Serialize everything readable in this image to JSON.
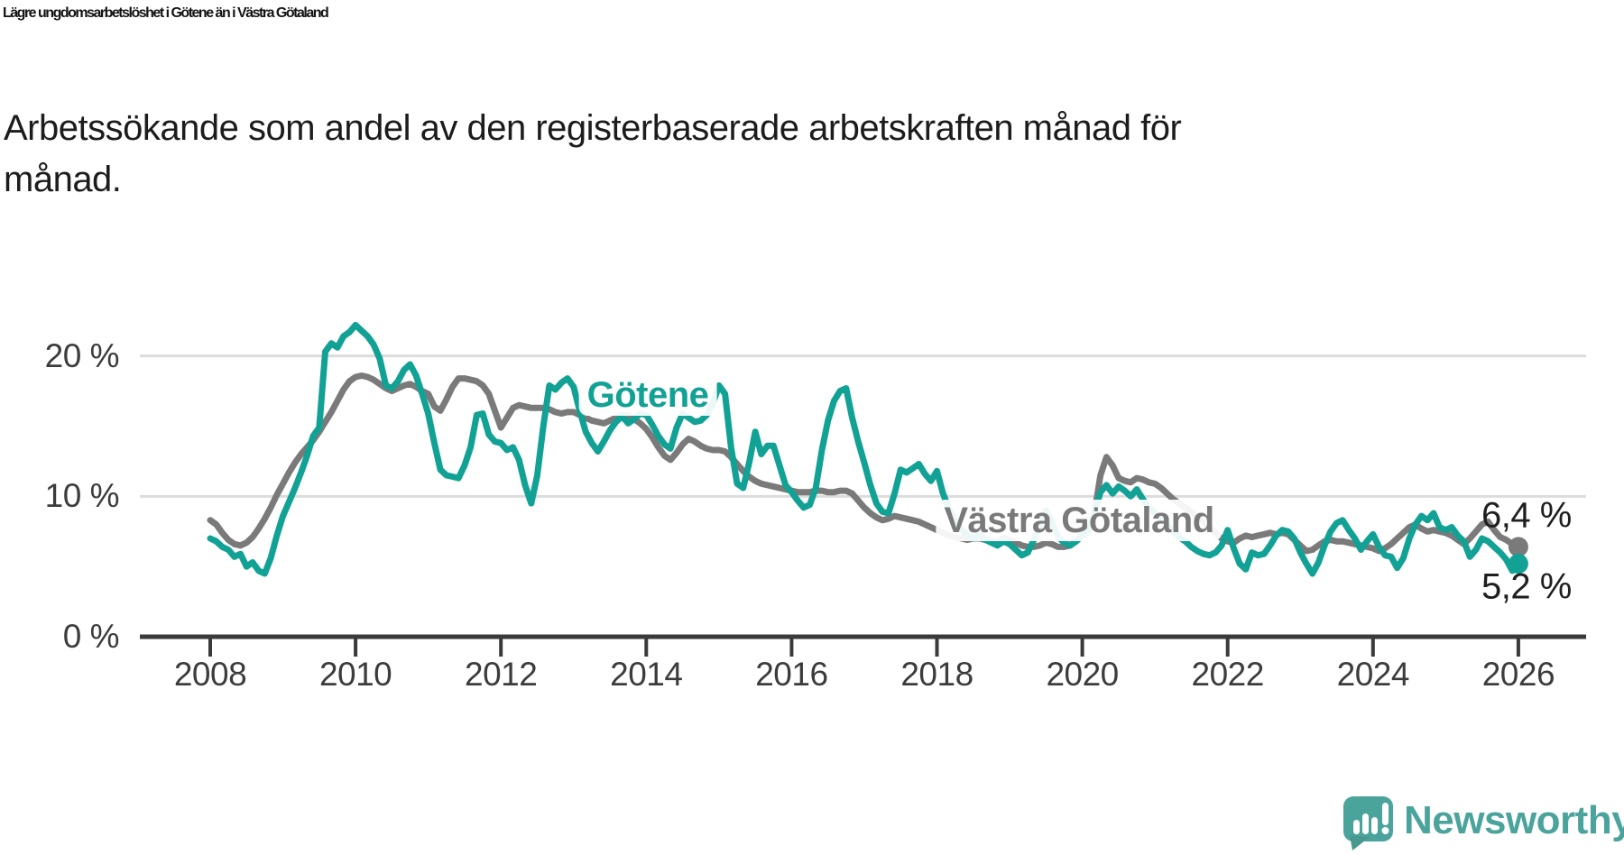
{
  "chart_data": {
    "type": "line",
    "title": "Lägre ungdomsarbetslöshet i Götene än i Västra Götaland",
    "subtitle": "Arbetssökande som andel av den registerbaserade arbetskraften månad för månad.",
    "subtitle_lines": [
      "Arbetssökande som andel av den registerbaserade arbetskraften månad för",
      "månad."
    ],
    "x_axis": {
      "ticks": [
        2008,
        2010,
        2012,
        2014,
        2016,
        2018,
        2020,
        2022,
        2024,
        2026
      ],
      "range": [
        2007.6,
        2026.9
      ]
    },
    "y_axis": {
      "ticks": [
        {
          "value": 0,
          "label": "0 %"
        },
        {
          "value": 10,
          "label": "10 %"
        },
        {
          "value": 20,
          "label": "20 %"
        }
      ],
      "range": [
        0,
        23
      ],
      "unit": "%",
      "grid": true
    },
    "legend_position": "inline-labels-on-lines",
    "frequency": "monthly",
    "series": [
      {
        "name": "Götene",
        "color": "#12A195",
        "start_year": 2008,
        "end_value_label": "5,2 %",
        "values": [
          7.0,
          6.8,
          6.4,
          6.2,
          5.7,
          5.9,
          5.0,
          5.3,
          4.7,
          4.5,
          5.6,
          7.2,
          8.6,
          9.6,
          10.6,
          11.7,
          12.9,
          14.3,
          14.9,
          20.3,
          20.9,
          20.6,
          21.4,
          21.7,
          22.2,
          21.8,
          21.4,
          20.8,
          19.8,
          17.9,
          17.7,
          18.2,
          19.0,
          19.4,
          18.6,
          17.3,
          15.9,
          13.8,
          11.9,
          11.5,
          11.4,
          11.3,
          12.2,
          13.5,
          15.8,
          15.9,
          14.4,
          13.9,
          13.8,
          13.3,
          13.5,
          12.6,
          10.8,
          9.5,
          11.5,
          15.0,
          17.9,
          17.6,
          18.1,
          18.4,
          17.8,
          16.1,
          14.6,
          13.8,
          13.2,
          13.9,
          14.7,
          15.3,
          15.7,
          15.2,
          15.5,
          15.9,
          15.8,
          15.1,
          14.3,
          13.7,
          13.4,
          14.9,
          15.9,
          15.6,
          15.3,
          15.4,
          15.8,
          16.6,
          17.9,
          17.3,
          13.5,
          10.9,
          10.6,
          12.4,
          14.6,
          13.0,
          13.6,
          13.6,
          12.2,
          10.8,
          10.3,
          9.7,
          9.2,
          9.4,
          10.6,
          13.3,
          15.4,
          16.8,
          17.5,
          17.7,
          15.6,
          13.9,
          12.4,
          10.8,
          9.5,
          8.9,
          8.8,
          10.2,
          11.9,
          11.7,
          12.0,
          12.3,
          11.6,
          11.1,
          11.8,
          10.2,
          9.1,
          8.3,
          7.7,
          7.2,
          7.0,
          7.3,
          6.9,
          6.7,
          6.5,
          6.8,
          6.6,
          6.2,
          5.8,
          6.0,
          6.9,
          7.9,
          9.0,
          8.2,
          7.1,
          6.7,
          6.5,
          6.8,
          7.2,
          7.5,
          8.8,
          10.3,
          10.8,
          10.2,
          10.7,
          10.4,
          10.0,
          10.5,
          9.8,
          9.2,
          8.8,
          8.4,
          7.9,
          7.5,
          7.1,
          6.8,
          6.4,
          6.1,
          5.9,
          5.8,
          6.0,
          6.5,
          7.6,
          6.3,
          5.2,
          4.8,
          6.0,
          5.8,
          5.9,
          6.5,
          7.2,
          7.6,
          7.5,
          7.0,
          6.0,
          5.2,
          4.5,
          5.3,
          6.5,
          7.5,
          8.1,
          8.3,
          7.6,
          7.0,
          6.2,
          6.8,
          7.3,
          6.4,
          5.8,
          5.7,
          4.9,
          5.6,
          7.0,
          8.0,
          8.6,
          8.3,
          8.8,
          7.8,
          7.6,
          7.8,
          7.2,
          6.8,
          5.7,
          6.2,
          7.0,
          6.8,
          6.4,
          6.0,
          5.5,
          4.7,
          5.2
        ]
      },
      {
        "name": "Västra Götaland",
        "color": "#7A7A7A",
        "start_year": 2008,
        "end_value_label": "6,4 %",
        "values": [
          8.3,
          8.0,
          7.4,
          6.9,
          6.6,
          6.5,
          6.7,
          7.1,
          7.7,
          8.4,
          9.2,
          10.1,
          10.9,
          11.7,
          12.4,
          13.0,
          13.5,
          14.0,
          14.6,
          15.3,
          16.0,
          16.8,
          17.6,
          18.2,
          18.5,
          18.6,
          18.5,
          18.3,
          18.0,
          17.7,
          17.5,
          17.7,
          17.9,
          18.0,
          17.8,
          17.5,
          17.3,
          16.4,
          16.1,
          16.9,
          17.8,
          18.4,
          18.4,
          18.3,
          18.2,
          17.9,
          17.3,
          16.1,
          14.9,
          15.6,
          16.3,
          16.5,
          16.4,
          16.3,
          16.3,
          16.3,
          16.2,
          16.0,
          15.9,
          16.0,
          16.0,
          15.8,
          15.6,
          15.4,
          15.3,
          15.2,
          15.4,
          15.6,
          15.8,
          15.8,
          15.5,
          15.2,
          14.8,
          14.2,
          13.5,
          12.9,
          12.6,
          13.1,
          13.7,
          14.1,
          13.9,
          13.6,
          13.4,
          13.3,
          13.3,
          13.2,
          12.8,
          12.3,
          11.8,
          11.4,
          11.1,
          10.9,
          10.8,
          10.7,
          10.6,
          10.5,
          10.4,
          10.3,
          10.3,
          10.3,
          10.4,
          10.4,
          10.3,
          10.3,
          10.4,
          10.4,
          10.2,
          9.7,
          9.2,
          8.8,
          8.5,
          8.3,
          8.4,
          8.6,
          8.5,
          8.4,
          8.3,
          8.2,
          8.0,
          7.8,
          7.6,
          7.4,
          7.2,
          7.1,
          7.0,
          6.9,
          7.0,
          7.0,
          6.9,
          6.8,
          6.8,
          7.0,
          6.9,
          6.7,
          6.5,
          6.4,
          6.4,
          6.5,
          6.7,
          6.6,
          6.4,
          6.4,
          6.5,
          6.9,
          7.2,
          7.6,
          8.8,
          11.5,
          12.8,
          12.2,
          11.3,
          11.1,
          11.0,
          11.3,
          11.2,
          11.0,
          10.9,
          10.6,
          10.2,
          9.8,
          9.5,
          9.2,
          8.9,
          8.6,
          8.2,
          7.8,
          7.4,
          7.0,
          6.8,
          6.7,
          7.0,
          7.2,
          7.1,
          7.2,
          7.3,
          7.4,
          7.3,
          7.4,
          7.3,
          6.9,
          6.5,
          6.1,
          6.2,
          6.5,
          6.8,
          6.9,
          6.8,
          6.8,
          6.7,
          6.6,
          6.5,
          6.4,
          6.3,
          6.1,
          6.3,
          6.6,
          7.0,
          7.4,
          7.8,
          8.0,
          7.7,
          7.5,
          7.6,
          7.5,
          7.4,
          7.2,
          6.9,
          6.6,
          7.0,
          7.5,
          8.0,
          8.2,
          7.6,
          7.1,
          6.9,
          6.6,
          6.4
        ]
      }
    ],
    "colors": {
      "grid": "#DCDCDC",
      "axis": "#3A3A3A",
      "tick_label": "#3C3C3C"
    }
  },
  "branding": {
    "logo_text": "Newsworthy",
    "logo_color": "#4BA49C"
  }
}
